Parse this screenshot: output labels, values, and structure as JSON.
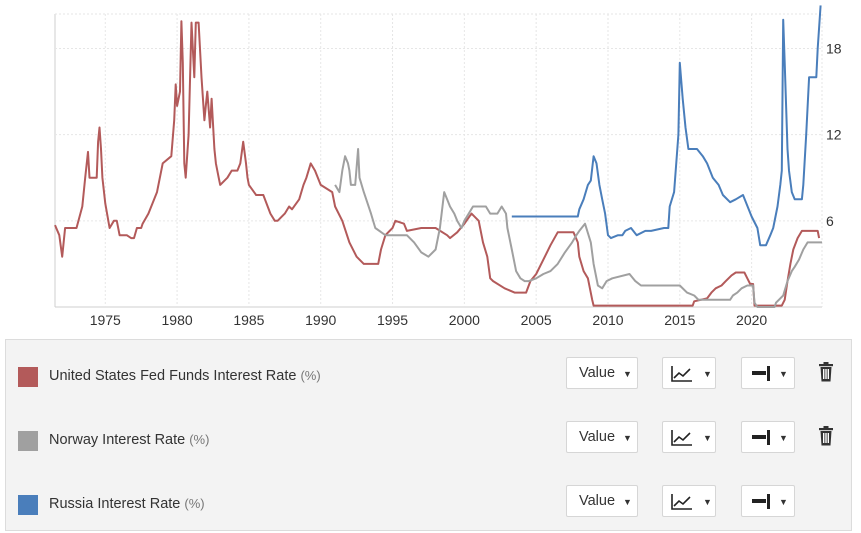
{
  "chart_data": {
    "type": "line",
    "xlabel": "",
    "ylabel": "",
    "xlim": [
      1971.5,
      2024.9
    ],
    "ylim": [
      0,
      20.4
    ],
    "x_ticks": [
      "1975",
      "1980",
      "1985",
      "1990",
      "1995",
      "2000",
      "2005",
      "2010",
      "2015",
      "2020"
    ],
    "y_ticks": [
      "6",
      "12",
      "18"
    ],
    "y_axis_position": "right",
    "grid": true,
    "series": [
      {
        "name": "United States Fed Funds Interest Rate",
        "color": "#b35a5a",
        "points": [
          [
            1971.5,
            5.7
          ],
          [
            1971.8,
            5.0
          ],
          [
            1972.0,
            3.5
          ],
          [
            1972.2,
            5.5
          ],
          [
            1973.0,
            5.5
          ],
          [
            1973.4,
            7.0
          ],
          [
            1973.6,
            9.0
          ],
          [
            1973.8,
            10.8
          ],
          [
            1973.9,
            9.0
          ],
          [
            1974.4,
            9.0
          ],
          [
            1974.5,
            11.5
          ],
          [
            1974.6,
            12.5
          ],
          [
            1974.7,
            11.0
          ],
          [
            1974.8,
            9.0
          ],
          [
            1975.0,
            7.2
          ],
          [
            1975.3,
            5.5
          ],
          [
            1975.6,
            6.0
          ],
          [
            1975.8,
            6.0
          ],
          [
            1976.0,
            5.0
          ],
          [
            1976.5,
            5.0
          ],
          [
            1976.8,
            4.8
          ],
          [
            1977.0,
            4.8
          ],
          [
            1977.2,
            5.5
          ],
          [
            1977.5,
            5.5
          ],
          [
            1977.6,
            5.8
          ],
          [
            1978.0,
            6.5
          ],
          [
            1978.6,
            8.0
          ],
          [
            1979.0,
            10.0
          ],
          [
            1979.6,
            10.5
          ],
          [
            1979.8,
            13.0
          ],
          [
            1979.9,
            15.5
          ],
          [
            1980.0,
            14.0
          ],
          [
            1980.2,
            15.0
          ],
          [
            1980.3,
            19.9
          ],
          [
            1980.4,
            17.0
          ],
          [
            1980.5,
            10.0
          ],
          [
            1980.6,
            9.0
          ],
          [
            1980.8,
            12.0
          ],
          [
            1981.0,
            19.8
          ],
          [
            1981.2,
            16.0
          ],
          [
            1981.3,
            19.8
          ],
          [
            1981.5,
            19.8
          ],
          [
            1981.7,
            16.0
          ],
          [
            1981.9,
            13.0
          ],
          [
            1982.0,
            14.0
          ],
          [
            1982.1,
            15.0
          ],
          [
            1982.3,
            12.5
          ],
          [
            1982.4,
            14.5
          ],
          [
            1982.6,
            11.0
          ],
          [
            1982.7,
            10.0
          ],
          [
            1982.9,
            9.0
          ],
          [
            1983.0,
            8.5
          ],
          [
            1983.5,
            9.0
          ],
          [
            1983.8,
            9.5
          ],
          [
            1984.2,
            9.5
          ],
          [
            1984.4,
            10.0
          ],
          [
            1984.6,
            11.5
          ],
          [
            1984.8,
            10.0
          ],
          [
            1984.9,
            9.0
          ],
          [
            1985.0,
            8.5
          ],
          [
            1985.5,
            7.8
          ],
          [
            1986.0,
            7.8
          ],
          [
            1986.5,
            6.5
          ],
          [
            1986.8,
            6.0
          ],
          [
            1987.0,
            6.0
          ],
          [
            1987.5,
            6.5
          ],
          [
            1987.8,
            7.0
          ],
          [
            1988.0,
            6.8
          ],
          [
            1988.5,
            7.5
          ],
          [
            1988.8,
            8.5
          ],
          [
            1989.0,
            9.0
          ],
          [
            1989.3,
            10.0
          ],
          [
            1989.6,
            9.5
          ],
          [
            1990.0,
            8.5
          ],
          [
            1990.8,
            8.0
          ],
          [
            1991.0,
            7.0
          ],
          [
            1991.5,
            6.0
          ],
          [
            1992.0,
            4.5
          ],
          [
            1992.5,
            3.5
          ],
          [
            1993.0,
            3.0
          ],
          [
            1994.0,
            3.0
          ],
          [
            1994.2,
            4.0
          ],
          [
            1994.5,
            5.0
          ],
          [
            1995.0,
            5.5
          ],
          [
            1995.2,
            6.0
          ],
          [
            1995.8,
            5.8
          ],
          [
            1996.0,
            5.3
          ],
          [
            1997.0,
            5.5
          ],
          [
            1998.0,
            5.5
          ],
          [
            1998.8,
            5.0
          ],
          [
            1999.0,
            4.8
          ],
          [
            1999.5,
            5.2
          ],
          [
            2000.0,
            5.8
          ],
          [
            2000.5,
            6.5
          ],
          [
            2001.0,
            6.0
          ],
          [
            2001.3,
            4.5
          ],
          [
            2001.6,
            3.5
          ],
          [
            2001.8,
            2.0
          ],
          [
            2002.0,
            1.8
          ],
          [
            2002.8,
            1.3
          ],
          [
            2003.5,
            1.0
          ],
          [
            2004.3,
            1.0
          ],
          [
            2004.6,
            1.8
          ],
          [
            2005.0,
            2.3
          ],
          [
            2005.5,
            3.3
          ],
          [
            2006.0,
            4.3
          ],
          [
            2006.5,
            5.2
          ],
          [
            2007.0,
            5.2
          ],
          [
            2007.6,
            5.2
          ],
          [
            2007.9,
            4.5
          ],
          [
            2008.0,
            3.5
          ],
          [
            2008.3,
            2.5
          ],
          [
            2008.6,
            2.0
          ],
          [
            2008.9,
            0.5
          ],
          [
            2009.0,
            0.1
          ],
          [
            2015.9,
            0.1
          ],
          [
            2016.0,
            0.4
          ],
          [
            2016.9,
            0.6
          ],
          [
            2017.2,
            1.0
          ],
          [
            2017.5,
            1.3
          ],
          [
            2017.9,
            1.5
          ],
          [
            2018.2,
            1.8
          ],
          [
            2018.6,
            2.2
          ],
          [
            2018.9,
            2.4
          ],
          [
            2019.5,
            2.4
          ],
          [
            2019.7,
            2.0
          ],
          [
            2019.9,
            1.6
          ],
          [
            2020.1,
            1.6
          ],
          [
            2020.2,
            0.1
          ],
          [
            2022.1,
            0.1
          ],
          [
            2022.3,
            0.5
          ],
          [
            2022.5,
            1.8
          ],
          [
            2022.7,
            3.0
          ],
          [
            2022.9,
            4.0
          ],
          [
            2023.2,
            4.8
          ],
          [
            2023.5,
            5.3
          ],
          [
            2024.6,
            5.3
          ],
          [
            2024.7,
            4.8
          ]
        ]
      },
      {
        "name": "Norway Interest Rate",
        "color": "#a0a0a0",
        "points": [
          [
            1991.0,
            8.5
          ],
          [
            1991.3,
            8.0
          ],
          [
            1991.5,
            9.5
          ],
          [
            1991.7,
            10.5
          ],
          [
            1991.9,
            10.0
          ],
          [
            1992.0,
            9.5
          ],
          [
            1992.1,
            8.5
          ],
          [
            1992.4,
            8.5
          ],
          [
            1992.6,
            11.0
          ],
          [
            1992.7,
            9.0
          ],
          [
            1993.0,
            8.0
          ],
          [
            1993.5,
            6.5
          ],
          [
            1993.8,
            5.5
          ],
          [
            1994.5,
            5.0
          ],
          [
            1995.0,
            5.0
          ],
          [
            1996.0,
            5.0
          ],
          [
            1996.5,
            4.5
          ],
          [
            1997.0,
            3.8
          ],
          [
            1997.5,
            3.5
          ],
          [
            1998.0,
            4.0
          ],
          [
            1998.3,
            5.5
          ],
          [
            1998.6,
            8.0
          ],
          [
            1998.8,
            7.5
          ],
          [
            1999.0,
            7.0
          ],
          [
            1999.3,
            6.5
          ],
          [
            1999.5,
            6.0
          ],
          [
            1999.8,
            5.5
          ],
          [
            2000.0,
            6.0
          ],
          [
            2000.3,
            6.5
          ],
          [
            2000.6,
            7.0
          ],
          [
            2001.0,
            7.0
          ],
          [
            2001.5,
            7.0
          ],
          [
            2001.8,
            6.5
          ],
          [
            2002.3,
            6.5
          ],
          [
            2002.6,
            7.0
          ],
          [
            2002.9,
            6.5
          ],
          [
            2003.0,
            5.5
          ],
          [
            2003.3,
            4.0
          ],
          [
            2003.6,
            2.5
          ],
          [
            2003.9,
            2.0
          ],
          [
            2004.2,
            1.8
          ],
          [
            2004.5,
            1.8
          ],
          [
            2005.0,
            2.0
          ],
          [
            2005.5,
            2.3
          ],
          [
            2006.0,
            2.5
          ],
          [
            2006.5,
            3.0
          ],
          [
            2007.0,
            3.8
          ],
          [
            2007.5,
            4.5
          ],
          [
            2007.8,
            5.0
          ],
          [
            2008.0,
            5.3
          ],
          [
            2008.4,
            5.8
          ],
          [
            2008.8,
            4.5
          ],
          [
            2009.0,
            3.0
          ],
          [
            2009.3,
            1.5
          ],
          [
            2009.6,
            1.3
          ],
          [
            2009.9,
            1.8
          ],
          [
            2010.3,
            2.0
          ],
          [
            2011.5,
            2.3
          ],
          [
            2011.9,
            1.8
          ],
          [
            2012.3,
            1.5
          ],
          [
            2015.0,
            1.5
          ],
          [
            2015.5,
            1.0
          ],
          [
            2016.0,
            0.8
          ],
          [
            2016.3,
            0.5
          ],
          [
            2018.5,
            0.5
          ],
          [
            2018.7,
            0.8
          ],
          [
            2019.0,
            1.0
          ],
          [
            2019.3,
            1.3
          ],
          [
            2019.7,
            1.5
          ],
          [
            2020.1,
            1.5
          ],
          [
            2020.2,
            0.3
          ],
          [
            2020.4,
            0.0
          ],
          [
            2021.6,
            0.0
          ],
          [
            2021.7,
            0.3
          ],
          [
            2021.9,
            0.5
          ],
          [
            2022.2,
            0.8
          ],
          [
            2022.5,
            1.8
          ],
          [
            2022.8,
            2.5
          ],
          [
            2023.0,
            2.8
          ],
          [
            2023.3,
            3.3
          ],
          [
            2023.6,
            4.0
          ],
          [
            2023.9,
            4.5
          ],
          [
            2024.9,
            4.5
          ]
        ]
      },
      {
        "name": "Russia Interest Rate",
        "color": "#4a7ebb",
        "points": [
          [
            2003.3,
            6.3
          ],
          [
            2007.9,
            6.3
          ],
          [
            2008.0,
            6.8
          ],
          [
            2008.3,
            7.5
          ],
          [
            2008.6,
            8.5
          ],
          [
            2008.8,
            8.8
          ],
          [
            2009.0,
            10.5
          ],
          [
            2009.2,
            10.0
          ],
          [
            2009.4,
            8.5
          ],
          [
            2009.6,
            7.5
          ],
          [
            2009.8,
            6.5
          ],
          [
            2010.0,
            5.0
          ],
          [
            2010.2,
            4.8
          ],
          [
            2010.7,
            5.0
          ],
          [
            2011.0,
            5.0
          ],
          [
            2011.2,
            5.3
          ],
          [
            2011.6,
            5.5
          ],
          [
            2012.0,
            5.0
          ],
          [
            2012.6,
            5.3
          ],
          [
            2013.0,
            5.3
          ],
          [
            2013.9,
            5.5
          ],
          [
            2014.2,
            5.5
          ],
          [
            2014.3,
            7.0
          ],
          [
            2014.6,
            8.0
          ],
          [
            2014.9,
            12.0
          ],
          [
            2015.0,
            17.0
          ],
          [
            2015.2,
            14.5
          ],
          [
            2015.4,
            12.5
          ],
          [
            2015.6,
            11.0
          ],
          [
            2016.2,
            11.0
          ],
          [
            2016.6,
            10.5
          ],
          [
            2016.9,
            10.0
          ],
          [
            2017.3,
            9.0
          ],
          [
            2017.7,
            8.5
          ],
          [
            2018.0,
            7.8
          ],
          [
            2018.5,
            7.3
          ],
          [
            2018.9,
            7.5
          ],
          [
            2019.4,
            7.8
          ],
          [
            2019.6,
            7.3
          ],
          [
            2019.8,
            6.8
          ],
          [
            2020.0,
            6.3
          ],
          [
            2020.4,
            5.5
          ],
          [
            2020.6,
            4.3
          ],
          [
            2021.0,
            4.3
          ],
          [
            2021.3,
            5.0
          ],
          [
            2021.5,
            5.5
          ],
          [
            2021.8,
            7.0
          ],
          [
            2022.0,
            8.5
          ],
          [
            2022.1,
            9.5
          ],
          [
            2022.2,
            20.0
          ],
          [
            2022.3,
            17.0
          ],
          [
            2022.5,
            11.0
          ],
          [
            2022.6,
            9.5
          ],
          [
            2022.8,
            8.0
          ],
          [
            2023.0,
            7.5
          ],
          [
            2023.5,
            7.5
          ],
          [
            2023.6,
            8.5
          ],
          [
            2023.8,
            12.0
          ],
          [
            2024.0,
            16.0
          ],
          [
            2024.5,
            16.0
          ],
          [
            2024.6,
            18.0
          ],
          [
            2024.8,
            21.0
          ]
        ]
      }
    ]
  },
  "legend": {
    "items": [
      {
        "name": "United States Fed Funds Interest Rate",
        "unit": "(%)",
        "color": "#b35a5a",
        "value_label": "Value",
        "has_delete": true
      },
      {
        "name": "Norway Interest Rate",
        "unit": "(%)",
        "color": "#a0a0a0",
        "value_label": "Value",
        "has_delete": true
      },
      {
        "name": "Russia Interest Rate",
        "unit": "(%)",
        "color": "#4a7ebb",
        "value_label": "Value",
        "has_delete": false
      }
    ],
    "icons": {
      "dropdown": "caret-down-icon",
      "chart_type": "line-chart-icon",
      "align": "axis-align-icon",
      "delete": "trash-icon"
    }
  }
}
